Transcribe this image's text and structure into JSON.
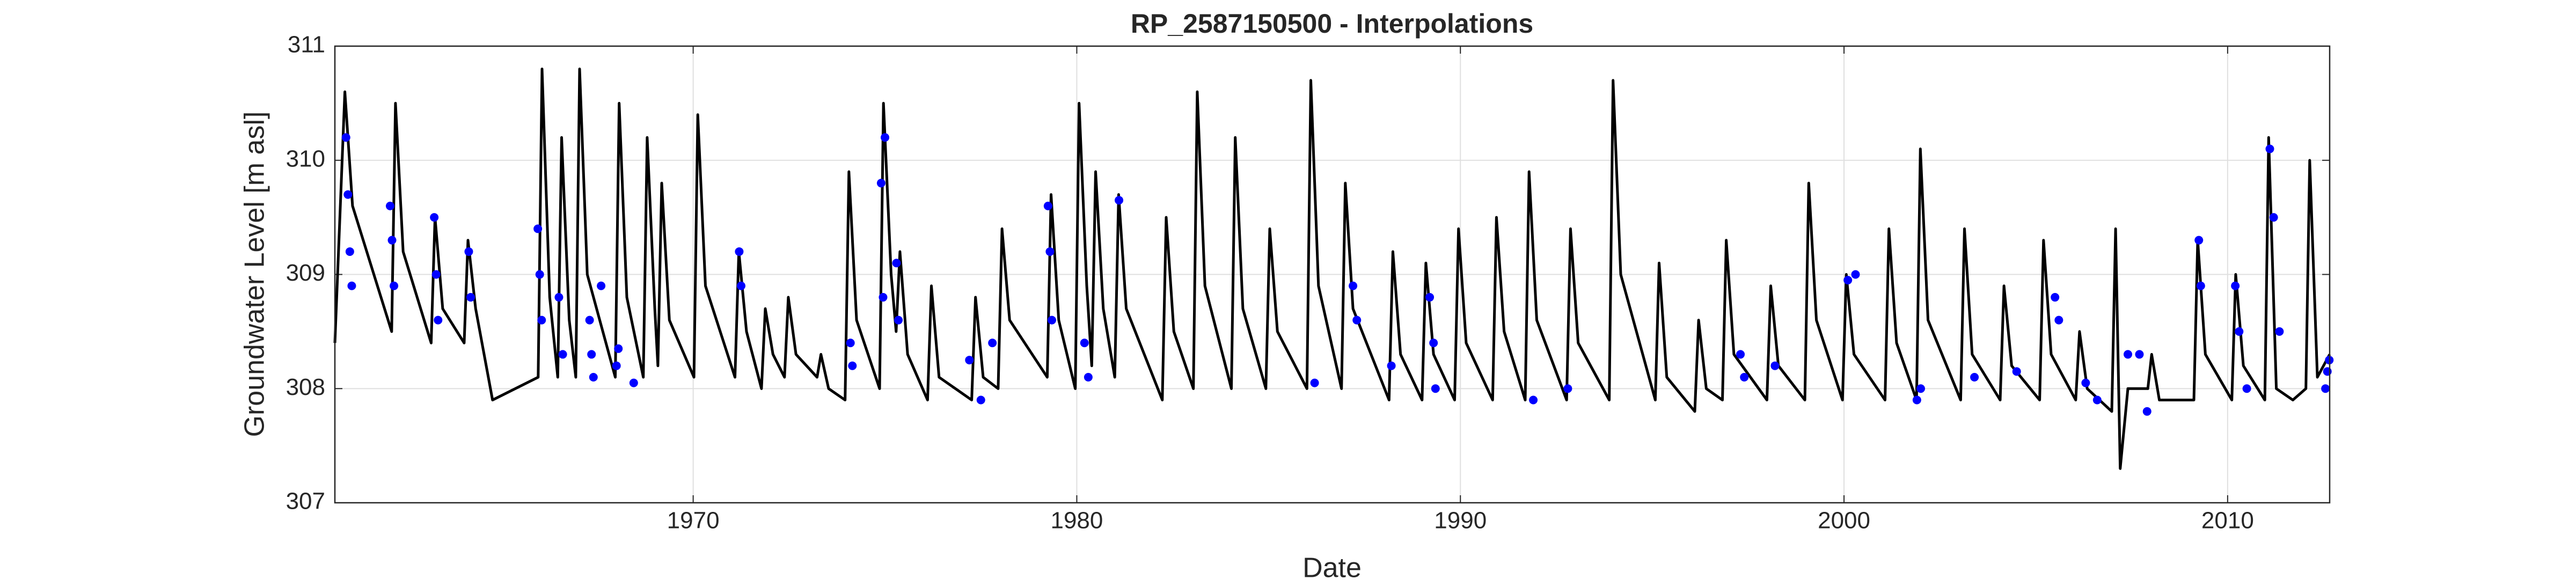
{
  "chart_data": {
    "type": "line",
    "title": "RP_2587150500 - Interpolations",
    "xlabel": "Date",
    "ylabel": "Groundwater Level [m asl]",
    "xlim": [
      1960.66,
      2012.66
    ],
    "xticks": [
      1970,
      1980,
      1990,
      2000,
      2010
    ],
    "ylim": [
      307,
      311
    ],
    "yticks": [
      307,
      308,
      309,
      310,
      311
    ],
    "grid": true,
    "series": [
      {
        "color": "#000000",
        "mode": "line",
        "x": [
          1960.66,
          1960.92,
          1961.12,
          1962.14,
          1962.24,
          1962.44,
          1963.17,
          1963.27,
          1963.47,
          1964.03,
          1964.13,
          1964.33,
          1964.77,
          1965.96,
          1966.06,
          1966.26,
          1966.47,
          1966.57,
          1966.77,
          1966.94,
          1967.04,
          1967.24,
          1967.97,
          1968.07,
          1968.27,
          1968.7,
          1968.8,
          1969.0,
          1969.08,
          1969.18,
          1969.38,
          1970.02,
          1970.12,
          1970.32,
          1971.09,
          1971.19,
          1971.39,
          1971.78,
          1971.88,
          1972.08,
          1972.38,
          1972.48,
          1972.68,
          1973.23,
          1973.33,
          1973.53,
          1973.96,
          1974.06,
          1974.26,
          1974.86,
          1974.96,
          1975.16,
          1975.29,
          1975.39,
          1975.59,
          1976.11,
          1976.21,
          1976.41,
          1977.26,
          1977.36,
          1977.56,
          1977.95,
          1978.05,
          1978.25,
          1979.23,
          1979.33,
          1979.53,
          1979.96,
          1980.06,
          1980.26,
          1980.39,
          1980.49,
          1980.69,
          1980.99,
          1981.09,
          1981.29,
          1982.23,
          1982.33,
          1982.53,
          1983.04,
          1983.14,
          1983.34,
          1984.03,
          1984.13,
          1984.33,
          1984.93,
          1985.03,
          1985.23,
          1986.0,
          1986.1,
          1986.3,
          1986.9,
          1987.0,
          1987.2,
          1988.14,
          1988.24,
          1988.44,
          1989.0,
          1989.1,
          1989.3,
          1989.85,
          1989.95,
          1990.15,
          1990.84,
          1990.94,
          1991.14,
          1991.69,
          1991.79,
          1991.99,
          1992.77,
          1992.87,
          1993.07,
          1993.88,
          1993.98,
          1994.18,
          1995.08,
          1995.18,
          1995.38,
          1996.11,
          1996.21,
          1996.41,
          1996.83,
          1996.93,
          1997.13,
          1997.99,
          1998.09,
          1998.29,
          1998.98,
          1999.08,
          1999.28,
          1999.96,
          2000.06,
          2000.26,
          2001.07,
          2001.17,
          2001.37,
          2001.89,
          2001.99,
          2002.19,
          2003.04,
          2003.14,
          2003.34,
          2004.07,
          2004.17,
          2004.37,
          2005.1,
          2005.2,
          2005.4,
          2006.04,
          2006.14,
          2006.34,
          2006.98,
          2007.08,
          2007.2,
          2007.4,
          2007.92,
          2008.02,
          2008.22,
          2009.12,
          2009.22,
          2009.42,
          2010.11,
          2010.21,
          2010.41,
          2010.97,
          2011.07,
          2011.27,
          2011.7,
          2012.04,
          2012.14,
          2012.34,
          2012.66
        ],
        "values": [
          308.4,
          310.6,
          309.6,
          308.5,
          310.5,
          309.2,
          308.4,
          309.5,
          308.7,
          308.4,
          309.3,
          308.7,
          307.9,
          308.1,
          310.8,
          308.8,
          308.1,
          310.2,
          308.6,
          308.1,
          310.8,
          309.0,
          308.1,
          310.5,
          308.8,
          308.1,
          310.2,
          308.7,
          308.2,
          309.8,
          308.6,
          308.1,
          310.4,
          308.9,
          308.1,
          309.2,
          308.5,
          308.0,
          308.7,
          308.3,
          308.1,
          308.8,
          308.3,
          308.1,
          308.3,
          308.0,
          307.9,
          309.9,
          308.6,
          308.0,
          310.5,
          309.0,
          308.5,
          309.2,
          308.3,
          307.9,
          308.9,
          308.1,
          307.9,
          308.8,
          308.1,
          308.0,
          309.4,
          308.6,
          308.1,
          309.7,
          308.6,
          308.0,
          310.5,
          308.9,
          308.2,
          309.9,
          308.7,
          308.1,
          309.7,
          308.7,
          307.9,
          309.5,
          308.5,
          308.0,
          310.6,
          308.9,
          308.0,
          310.2,
          308.7,
          308.0,
          309.4,
          308.5,
          308.0,
          310.7,
          308.9,
          308.0,
          309.8,
          308.7,
          307.9,
          309.2,
          308.3,
          307.9,
          309.1,
          308.3,
          307.9,
          309.4,
          308.4,
          307.9,
          309.5,
          308.5,
          307.9,
          309.9,
          308.6,
          307.9,
          309.4,
          308.4,
          307.9,
          310.7,
          309.0,
          307.9,
          309.1,
          308.1,
          307.8,
          308.6,
          308.0,
          307.9,
          309.3,
          308.3,
          307.9,
          308.9,
          308.2,
          307.9,
          309.8,
          308.6,
          307.9,
          309.0,
          308.3,
          307.9,
          309.4,
          308.4,
          307.9,
          310.1,
          308.6,
          307.9,
          309.4,
          308.3,
          307.9,
          308.9,
          308.2,
          307.9,
          309.3,
          308.3,
          307.9,
          308.5,
          308.0,
          307.8,
          309.4,
          307.3,
          308.0,
          308.0,
          308.3,
          307.9,
          307.9,
          309.3,
          308.3,
          307.9,
          309.0,
          308.2,
          307.9,
          310.2,
          308.0,
          307.9,
          308.0,
          310.0,
          308.1,
          308.3
        ]
      },
      {
        "color": "#0000ff",
        "mode": "markers",
        "x": [
          1960.95,
          1961.0,
          1961.05,
          1961.1,
          1962.1,
          1962.15,
          1962.2,
          1963.25,
          1963.3,
          1963.35,
          1964.15,
          1964.2,
          1965.95,
          1966.0,
          1966.05,
          1966.5,
          1966.6,
          1967.3,
          1967.35,
          1967.4,
          1967.6,
          1968.0,
          1968.05,
          1968.45,
          1971.2,
          1971.25,
          1974.1,
          1974.15,
          1974.9,
          1974.95,
          1975.0,
          1975.3,
          1975.35,
          1977.2,
          1977.5,
          1977.8,
          1979.25,
          1979.3,
          1979.35,
          1980.2,
          1980.3,
          1981.1,
          1986.2,
          1987.2,
          1987.3,
          1988.2,
          1989.2,
          1989.3,
          1989.35,
          1991.9,
          1992.8,
          1997.3,
          1997.4,
          1998.2,
          2000.1,
          2000.3,
          2001.9,
          2002.0,
          2003.4,
          2004.5,
          2005.5,
          2005.6,
          2006.3,
          2006.6,
          2007.4,
          2007.7,
          2007.9,
          2009.25,
          2009.3,
          2010.2,
          2010.3,
          2010.5,
          2011.1,
          2011.2,
          2011.35,
          2012.55,
          2012.6,
          2012.65
        ],
        "values": [
          310.2,
          309.7,
          309.2,
          308.9,
          309.6,
          309.3,
          308.9,
          309.5,
          309.0,
          308.6,
          309.2,
          308.8,
          309.4,
          309.0,
          308.6,
          308.8,
          308.3,
          308.6,
          308.3,
          308.1,
          308.9,
          308.2,
          308.35,
          308.05,
          309.2,
          308.9,
          308.4,
          308.2,
          309.8,
          308.8,
          310.2,
          309.1,
          308.6,
          308.25,
          307.9,
          308.4,
          309.6,
          309.2,
          308.6,
          308.4,
          308.1,
          309.65,
          308.05,
          308.9,
          308.6,
          308.2,
          308.8,
          308.4,
          308.0,
          307.9,
          308.0,
          308.3,
          308.1,
          308.2,
          308.95,
          309.0,
          307.9,
          308.0,
          308.1,
          308.15,
          308.8,
          308.6,
          308.05,
          307.9,
          308.3,
          308.3,
          307.8,
          309.3,
          308.9,
          308.9,
          308.5,
          308.0,
          310.1,
          309.5,
          308.5,
          308.0,
          308.15,
          308.25
        ]
      }
    ]
  }
}
